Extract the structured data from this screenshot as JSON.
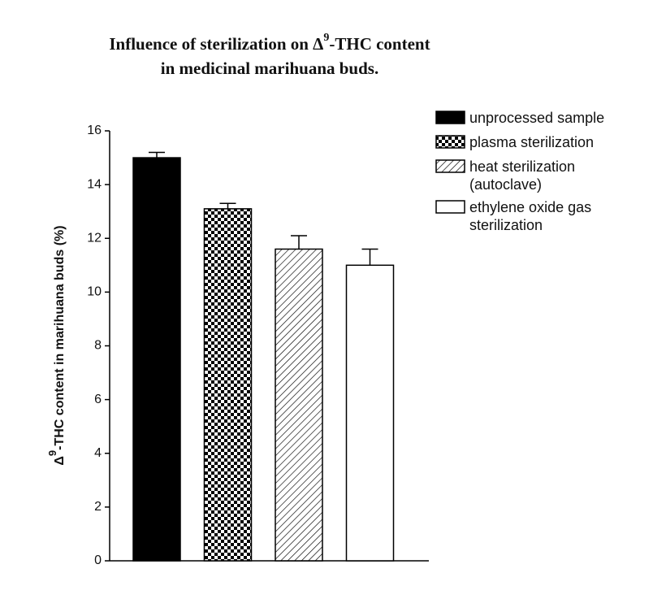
{
  "chart_data": {
    "type": "bar",
    "title_line1": [
      "Influence of sterilization on Δ",
      "9",
      "-THC content"
    ],
    "title_line2": "in medicinal marihuana buds.",
    "ylabel": [
      "Δ",
      "9",
      "-THC content in marihuana buds (%)"
    ],
    "categories": [
      null
    ],
    "series": [
      {
        "name": "unprocessed sample",
        "color": "#000000",
        "pattern": "solid",
        "values": [
          15.0
        ],
        "errors": [
          0.2
        ]
      },
      {
        "name": "plasma sterilization",
        "color": "#000000",
        "pattern": "checker",
        "values": [
          13.1
        ],
        "errors": [
          0.2
        ]
      },
      {
        "name": "heat sterilization (autoclave)",
        "color": "#000000",
        "pattern": "hatch",
        "values": [
          11.6
        ],
        "errors": [
          0.5
        ]
      },
      {
        "name": "ethylene oxide gas sterilization",
        "color": "#000000",
        "pattern": "none",
        "values": [
          11.0
        ],
        "errors": [
          0.6
        ]
      }
    ],
    "ylim": [
      0,
      16
    ],
    "yticks": [
      0,
      2,
      4,
      6,
      8,
      10,
      12,
      14,
      16
    ],
    "grid": false,
    "legend": "right"
  }
}
